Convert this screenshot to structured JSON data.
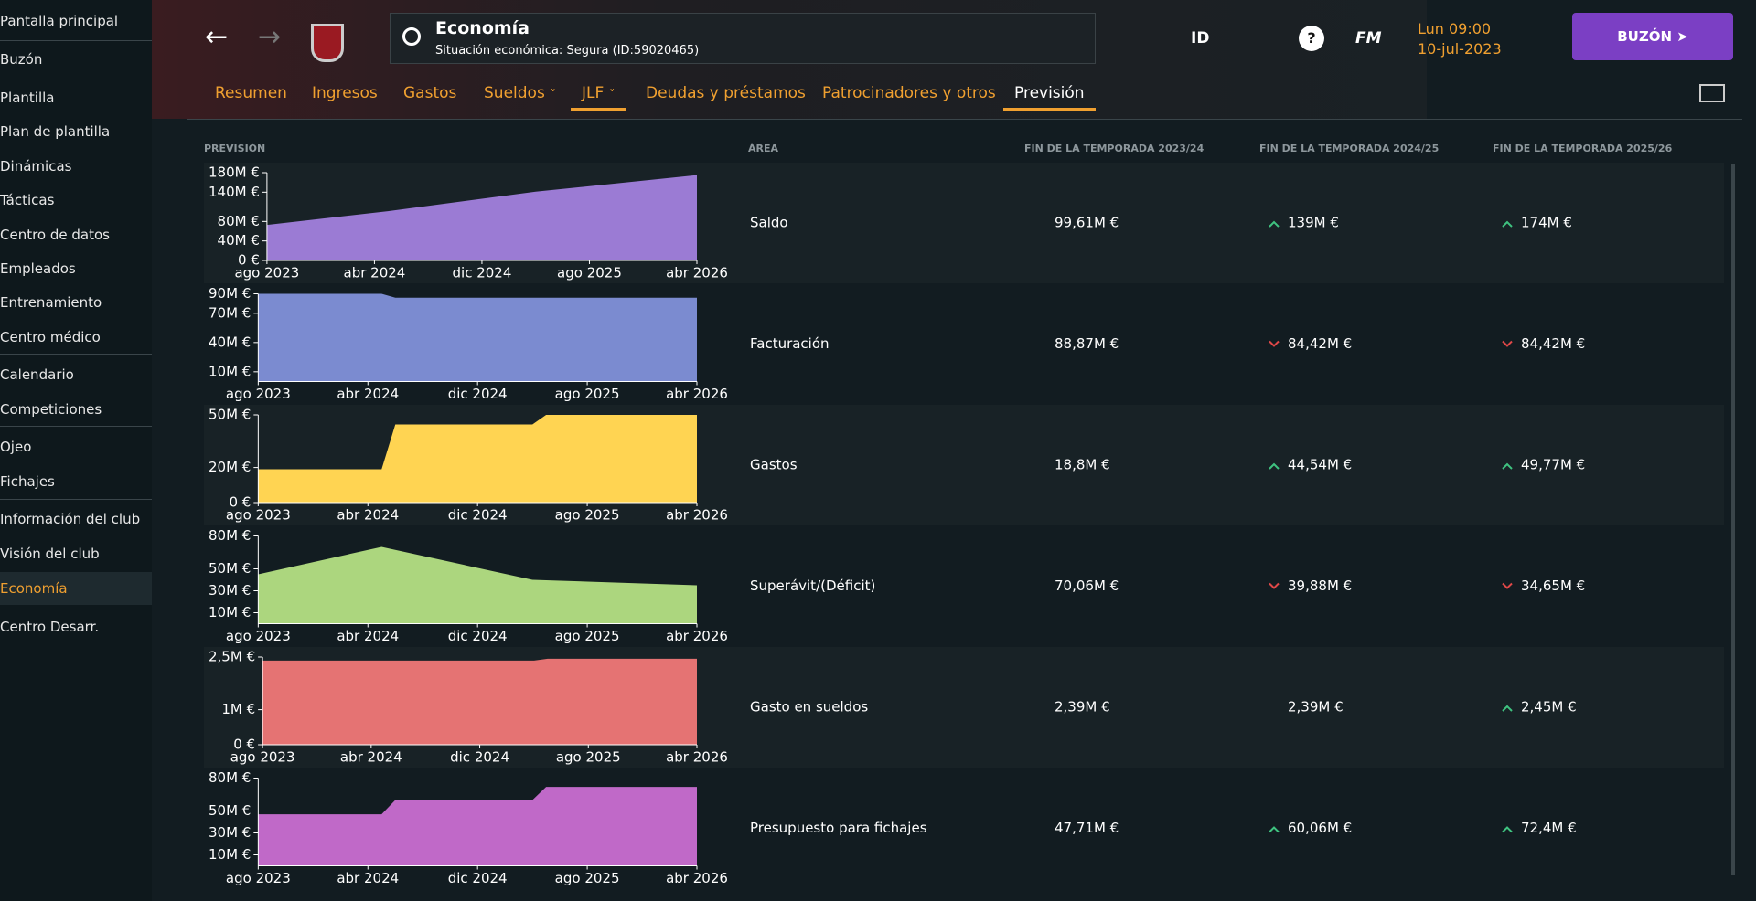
{
  "sidebar": [
    "Pantalla principal",
    "Buzón",
    "Plantilla",
    "Plan de plantilla",
    "Dinámicas",
    "Tácticas",
    "Centro de datos",
    "Empleados",
    "Entrenamiento",
    "Centro médico",
    "Calendario",
    "Competiciones",
    "Ojeo",
    "Fichajes",
    "Información del club",
    "Visión del club",
    "Economía",
    "Centro Desarr."
  ],
  "sidebar_active": 16,
  "header": {
    "title": "Economía",
    "subtitle": "Situación económica: Segura (ID:59020465)",
    "id_label": "ID",
    "fm_label": "FM",
    "time": "Lun 09:00",
    "date": "10-jul-2023",
    "inbox": "BUZÓN"
  },
  "tabs": [
    "Resumen",
    "Ingresos",
    "Gastos",
    "Sueldos",
    "JLF",
    "Deudas y préstamos",
    "Patrocinadores y otros",
    "Previsión"
  ],
  "tabs_dropdown": [
    3,
    4
  ],
  "tabs_underlined": [
    4,
    7
  ],
  "active_tab": 7,
  "table": {
    "columns": [
      "PREVISIÓN",
      "ÁREA",
      "FIN DE LA TEMPORADA 2023/24",
      "FIN DE LA TEMPORADA 2024/25",
      "FIN DE LA TEMPORADA 2025/26"
    ],
    "rows": [
      {
        "area": "Saldo",
        "values": [
          "99,61M €",
          "139M €",
          "174M €"
        ],
        "trends": [
          null,
          "up",
          "up"
        ],
        "chart": {
          "type": "area",
          "color": "#9b7bd4",
          "xlim": [
            0,
            32
          ],
          "xticks": [
            {
              "value": 0,
              "label": "ago 2023"
            },
            {
              "value": 8,
              "label": "abr 2024"
            },
            {
              "value": 16,
              "label": "dic 2024"
            },
            {
              "value": 24,
              "label": "ago 2025"
            },
            {
              "value": 32,
              "label": "abr 2026"
            }
          ],
          "ylim": [
            0,
            180
          ],
          "yticks": [
            {
              "value": 0,
              "label": "0 €"
            },
            {
              "value": 40,
              "label": "40M €"
            },
            {
              "value": 80,
              "label": "80M €"
            },
            {
              "value": 140,
              "label": "140M €"
            },
            {
              "value": 180,
              "label": "180M €"
            }
          ],
          "x": [
            0,
            9,
            20,
            32
          ],
          "values": [
            73,
            101,
            141,
            175
          ]
        }
      },
      {
        "area": "Facturación",
        "values": [
          "88,87M €",
          "84,42M €",
          "84,42M €"
        ],
        "trends": [
          null,
          "down",
          "down"
        ],
        "chart": {
          "type": "area",
          "color": "#7b8bd0",
          "xlim": [
            0,
            32
          ],
          "xticks": [
            {
              "value": 0,
              "label": "ago 2023"
            },
            {
              "value": 8,
              "label": "abr 2024"
            },
            {
              "value": 16,
              "label": "dic 2024"
            },
            {
              "value": 24,
              "label": "ago 2025"
            },
            {
              "value": 32,
              "label": "abr 2026"
            }
          ],
          "ylim": [
            0,
            90
          ],
          "yticks": [
            {
              "value": 10,
              "label": "10M €"
            },
            {
              "value": 40,
              "label": "40M €"
            },
            {
              "value": 70,
              "label": "70M €"
            },
            {
              "value": 90,
              "label": "90M €"
            }
          ],
          "x": [
            0,
            9,
            10,
            32
          ],
          "values": [
            90,
            90,
            86,
            86
          ]
        }
      },
      {
        "area": "Gastos",
        "values": [
          "18,8M €",
          "44,54M €",
          "49,77M €"
        ],
        "trends": [
          null,
          "up",
          "up"
        ],
        "chart": {
          "type": "area",
          "color": "#ffd452",
          "xlim": [
            0,
            32
          ],
          "xticks": [
            {
              "value": 0,
              "label": "ago 2023"
            },
            {
              "value": 8,
              "label": "abr 2024"
            },
            {
              "value": 16,
              "label": "dic 2024"
            },
            {
              "value": 24,
              "label": "ago 2025"
            },
            {
              "value": 32,
              "label": "abr 2026"
            }
          ],
          "ylim": [
            0,
            50
          ],
          "yticks": [
            {
              "value": 0,
              "label": "0 €"
            },
            {
              "value": 20,
              "label": "20M €"
            },
            {
              "value": 50,
              "label": "50M €"
            }
          ],
          "x": [
            0,
            9,
            10,
            20,
            21,
            32
          ],
          "values": [
            19,
            19,
            44.5,
            44.5,
            50,
            50
          ]
        }
      },
      {
        "area": "Superávit/(Déficit)",
        "values": [
          "70,06M €",
          "39,88M €",
          "34,65M €"
        ],
        "trends": [
          null,
          "down",
          "down"
        ],
        "chart": {
          "type": "area",
          "color": "#acd67e",
          "xlim": [
            0,
            32
          ],
          "xticks": [
            {
              "value": 0,
              "label": "ago 2023"
            },
            {
              "value": 8,
              "label": "abr 2024"
            },
            {
              "value": 16,
              "label": "dic 2024"
            },
            {
              "value": 24,
              "label": "ago 2025"
            },
            {
              "value": 32,
              "label": "abr 2026"
            }
          ],
          "ylim": [
            0,
            80
          ],
          "yticks": [
            {
              "value": 10,
              "label": "10M €"
            },
            {
              "value": 30,
              "label": "30M €"
            },
            {
              "value": 50,
              "label": "50M €"
            },
            {
              "value": 80,
              "label": "80M €"
            }
          ],
          "x": [
            0,
            9,
            20,
            32
          ],
          "values": [
            45,
            70,
            40,
            35
          ]
        }
      },
      {
        "area": "Gasto en sueldos",
        "values": [
          "2,39M €",
          "2,39M €",
          "2,45M €"
        ],
        "trends": [
          null,
          null,
          "up"
        ],
        "chart": {
          "type": "area",
          "color": "#e57373",
          "xlim": [
            0,
            32
          ],
          "xticks": [
            {
              "value": 0,
              "label": "ago 2023"
            },
            {
              "value": 8,
              "label": "abr 2024"
            },
            {
              "value": 16,
              "label": "dic 2024"
            },
            {
              "value": 24,
              "label": "ago 2025"
            },
            {
              "value": 32,
              "label": "abr 2026"
            }
          ],
          "ylim": [
            0,
            2.5
          ],
          "yticks": [
            {
              "value": 0,
              "label": "0 €"
            },
            {
              "value": 1,
              "label": "1M €"
            },
            {
              "value": 2.5,
              "label": "2,5M €"
            }
          ],
          "x": [
            0,
            20,
            21,
            32
          ],
          "values": [
            2.4,
            2.4,
            2.45,
            2.45
          ]
        }
      },
      {
        "area": "Presupuesto para fichajes",
        "values": [
          "47,71M €",
          "60,06M €",
          "72,4M €"
        ],
        "trends": [
          null,
          "up",
          "up"
        ],
        "chart": {
          "type": "area",
          "color": "#c069c8",
          "xlim": [
            0,
            32
          ],
          "xticks": [
            {
              "value": 0,
              "label": "ago 2023"
            },
            {
              "value": 8,
              "label": "abr 2024"
            },
            {
              "value": 16,
              "label": "dic 2024"
            },
            {
              "value": 24,
              "label": "ago 2025"
            },
            {
              "value": 32,
              "label": "abr 2026"
            }
          ],
          "ylim": [
            0,
            80
          ],
          "yticks": [
            {
              "value": 10,
              "label": "10M €"
            },
            {
              "value": 30,
              "label": "30M €"
            },
            {
              "value": 50,
              "label": "50M €"
            },
            {
              "value": 80,
              "label": "80M €"
            }
          ],
          "x": [
            0,
            9,
            10,
            20,
            21,
            32
          ],
          "values": [
            47,
            47,
            60,
            60,
            72,
            72
          ]
        }
      }
    ]
  }
}
